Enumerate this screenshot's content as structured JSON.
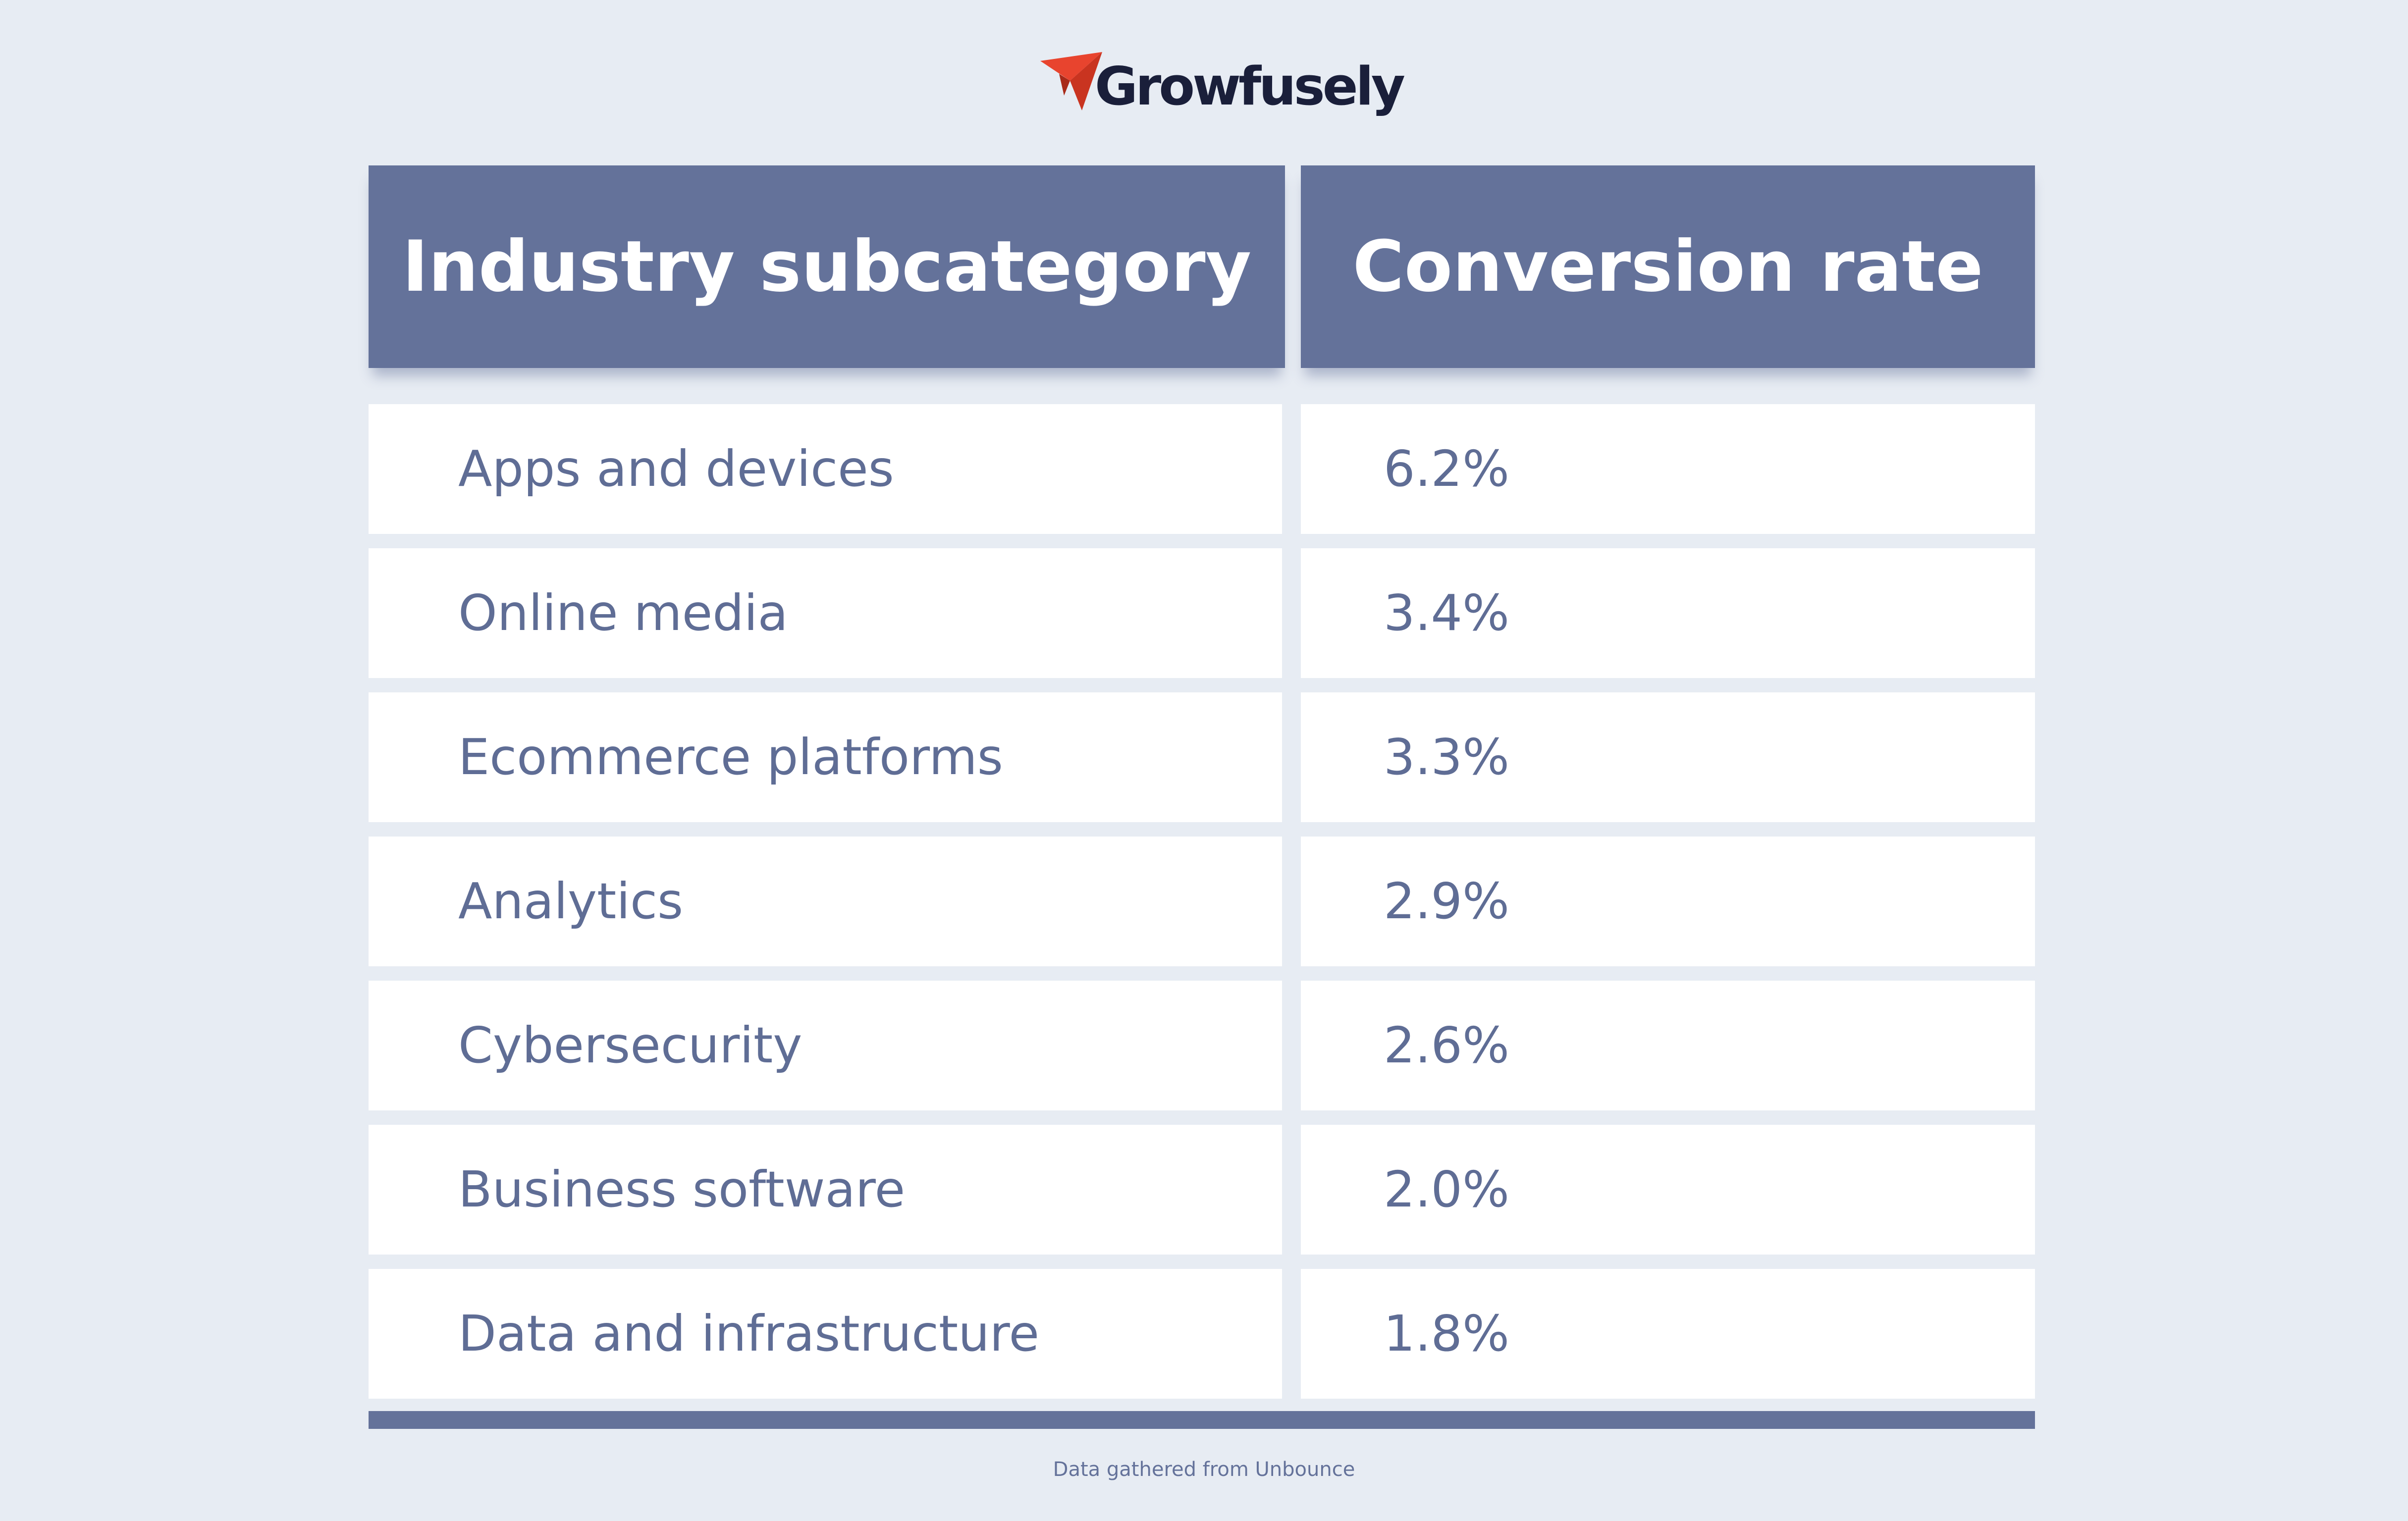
{
  "logo": {
    "name": "Growfusely",
    "mark_color": "#e8442e",
    "text_color": "#1a1f3a"
  },
  "colors": {
    "background": "#e7ecf3",
    "header_fill": "#64729a",
    "row_fill": "#ffffff",
    "body_text": "#5f6d95"
  },
  "chart_data": {
    "type": "table",
    "columns": [
      "Industry subcategory",
      "Conversion rate"
    ],
    "rows": [
      {
        "subcategory": "Apps and devices",
        "rate": "6.2%"
      },
      {
        "subcategory": "Online media",
        "rate": "3.4%"
      },
      {
        "subcategory": "Ecommerce platforms",
        "rate": "3.3%"
      },
      {
        "subcategory": "Analytics",
        "rate": "2.9%"
      },
      {
        "subcategory": "Cybersecurity",
        "rate": "2.6%"
      },
      {
        "subcategory": "Business software",
        "rate": "2.0%"
      },
      {
        "subcategory": "Data and infrastructure",
        "rate": "1.8%"
      }
    ]
  },
  "footer": {
    "source": "Data gathered from Unbounce"
  }
}
